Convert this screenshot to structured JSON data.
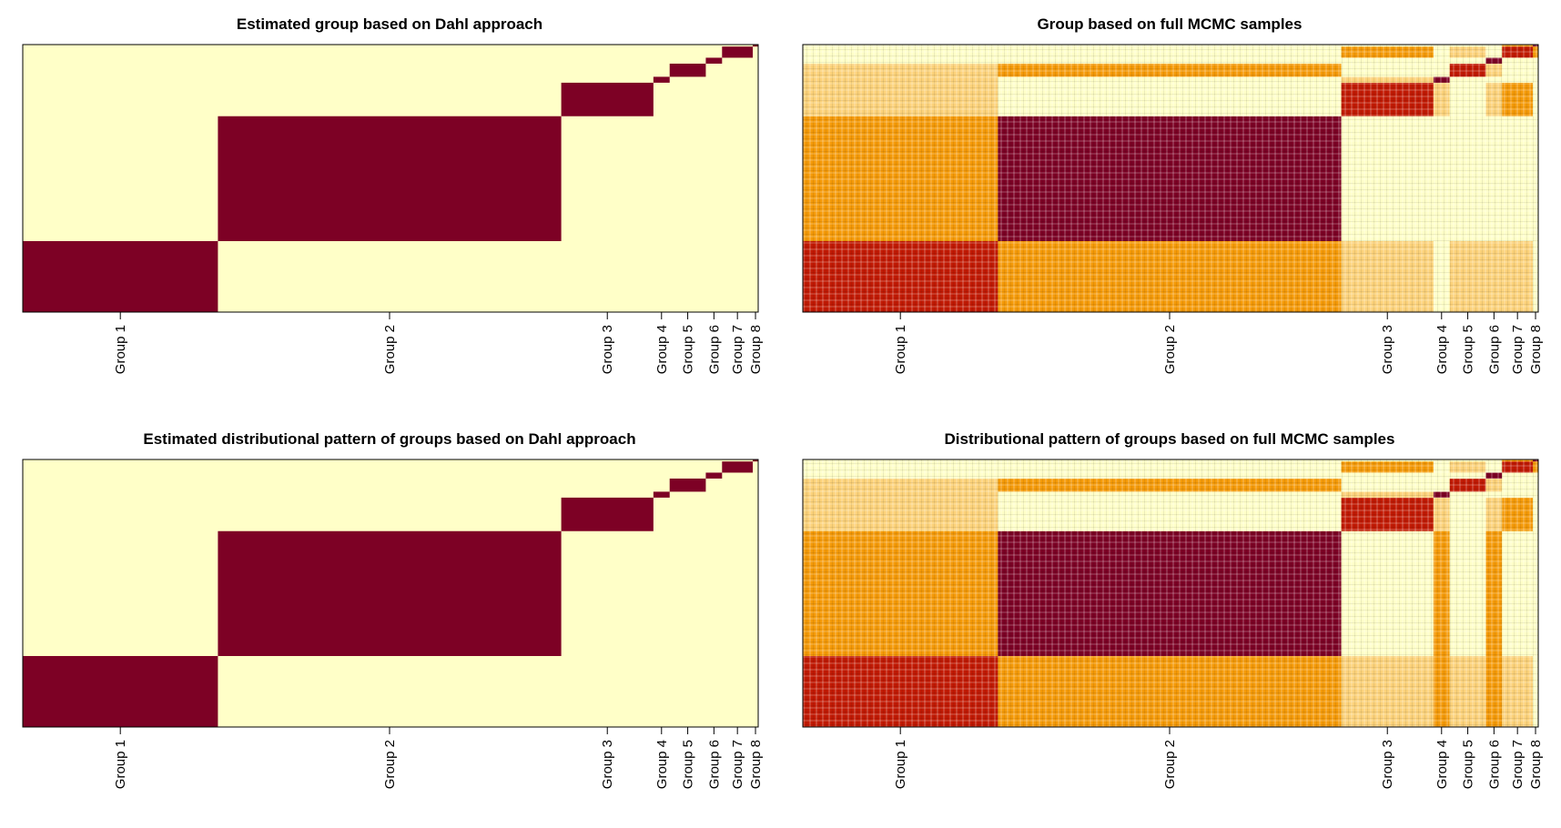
{
  "figure": {
    "background": "#ffffff"
  },
  "palette": {
    "dark": "#7d0125",
    "red": "#c21a04",
    "orange": "#f59a08",
    "yellow": "#fcd27a",
    "light": "#ffffc8"
  },
  "chart_data": [
    {
      "type": "heatmap",
      "title": "Estimated group based on Dahl approach",
      "style": "block",
      "categories": [
        "Group 1",
        "Group 2",
        "Group 3",
        "Group 4",
        "Group 5",
        "Group 6",
        "Group 7",
        "Group 8"
      ],
      "group_sizes": [
        108,
        190,
        51,
        9,
        20,
        9,
        17,
        3
      ],
      "xlabel": "",
      "ylabel": ""
    },
    {
      "type": "heatmap",
      "title": "Group based on full MCMC samples",
      "style": "probability",
      "categories": [
        "Group 1",
        "Group 2",
        "Group 3",
        "Group 4",
        "Group 5",
        "Group 6",
        "Group 7",
        "Group 8"
      ],
      "group_sizes": [
        108,
        190,
        51,
        9,
        20,
        9,
        17,
        3
      ],
      "xlabel": "",
      "ylabel": ""
    },
    {
      "type": "heatmap",
      "title": "Estimated distributional pattern of groups based on Dahl approach",
      "style": "block",
      "categories": [
        "Group 1",
        "Group 2",
        "Group 3",
        "Group 4",
        "Group 5",
        "Group 6",
        "Group 7",
        "Group 8"
      ],
      "group_sizes": [
        108,
        190,
        51,
        9,
        20,
        9,
        17,
        3
      ],
      "xlabel": "",
      "ylabel": ""
    },
    {
      "type": "heatmap",
      "title": "Distributional pattern of groups based on full MCMC samples",
      "style": "probability",
      "categories": [
        "Group 1",
        "Group 2",
        "Group 3",
        "Group 4",
        "Group 5",
        "Group 6",
        "Group 7",
        "Group 8"
      ],
      "group_sizes": [
        108,
        190,
        51,
        9,
        20,
        9,
        17,
        3
      ],
      "xlabel": "",
      "ylabel": ""
    }
  ]
}
